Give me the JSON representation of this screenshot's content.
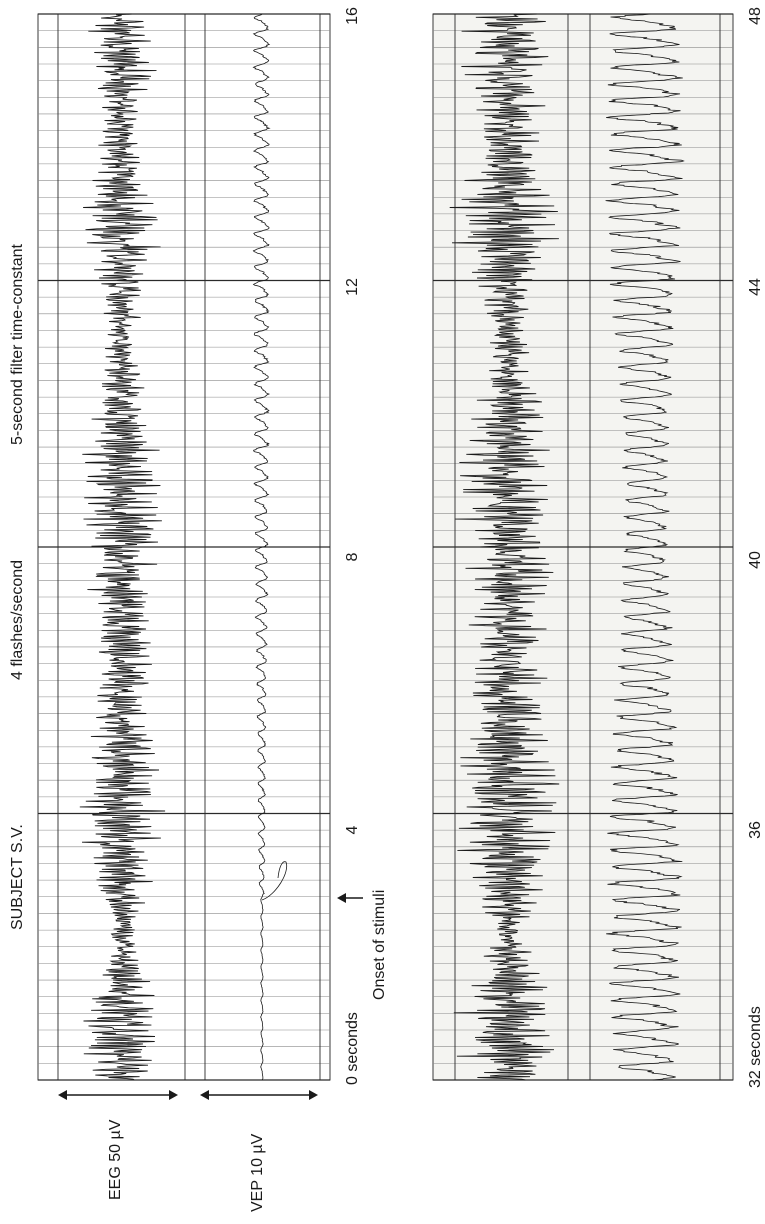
{
  "colors": {
    "background": "#ffffff",
    "paper": "#f4f4f1",
    "grid_minor": "#8a8a8a",
    "grid_major": "#2a2a2a",
    "trace": "#1a1a1a",
    "text": "#1a1a1a"
  },
  "labels": {
    "subject": "SUBJECT S.V.",
    "flash_rate": "4 flashes/second",
    "filter": "5-second filter time-constant",
    "onset": "Onset of stimuli",
    "eeg_scale": "EEG 50 µV",
    "vep_scale": "VEP 10 µV"
  },
  "chart_data": [
    {
      "type": "line",
      "panel": "top",
      "series": [
        {
          "name": "EEG 50 µV"
        },
        {
          "name": "VEP 10 µV"
        }
      ],
      "x_ticks": [
        "0 seconds",
        "4",
        "8",
        "12",
        "16"
      ],
      "xlim": [
        0,
        16
      ],
      "grid": true
    },
    {
      "type": "line",
      "panel": "bottom",
      "series": [
        {
          "name": "EEG"
        },
        {
          "name": "VEP"
        }
      ],
      "x_ticks": [
        "32 seconds",
        "36",
        "40",
        "44",
        "48"
      ],
      "xlim": [
        32,
        48
      ],
      "grid": true
    }
  ]
}
